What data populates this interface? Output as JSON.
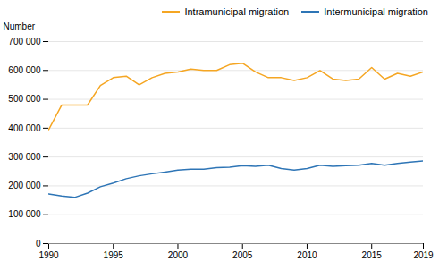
{
  "chart_data": {
    "type": "line",
    "x": [
      1990,
      1991,
      1992,
      1993,
      1994,
      1995,
      1996,
      1997,
      1998,
      1999,
      2000,
      2001,
      2002,
      2003,
      2004,
      2005,
      2006,
      2007,
      2008,
      2009,
      2010,
      2011,
      2012,
      2013,
      2014,
      2015,
      2016,
      2017,
      2018,
      2019
    ],
    "series": [
      {
        "name": "Intramunicipal migration",
        "color": "#F5A623",
        "values": [
          395000,
          480000,
          480000,
          480000,
          548000,
          575000,
          580000,
          550000,
          575000,
          590000,
          595000,
          605000,
          600000,
          600000,
          620000,
          625000,
          595000,
          575000,
          575000,
          565000,
          575000,
          600000,
          570000,
          565000,
          570000,
          610000,
          570000,
          590000,
          580000,
          595000
        ]
      },
      {
        "name": "Intermunicipal migration",
        "color": "#2E75B6",
        "values": [
          172000,
          165000,
          160000,
          175000,
          197000,
          210000,
          225000,
          235000,
          242000,
          248000,
          255000,
          258000,
          258000,
          263000,
          265000,
          270000,
          268000,
          272000,
          260000,
          255000,
          260000,
          272000,
          268000,
          270000,
          272000,
          278000,
          272000,
          278000,
          283000,
          287000
        ]
      }
    ],
    "ylabel": "Number",
    "xlim": [
      1990,
      2019
    ],
    "xticks": [
      1990,
      1995,
      2000,
      2005,
      2010,
      2015,
      2019
    ],
    "ylim": [
      0,
      700000
    ],
    "yticks": [
      0,
      {
        "value": 100000,
        "label": "100 000"
      },
      {
        "value": 200000,
        "label": "200 000"
      },
      {
        "value": 300000,
        "label": "300 000"
      },
      {
        "value": 400000,
        "label": "400 000"
      },
      {
        "value": 500000,
        "label": "500 000"
      },
      {
        "value": 600000,
        "label": "600 000"
      },
      {
        "value": 700000,
        "label": "700 000"
      }
    ],
    "grid": true,
    "legend": "upper right"
  }
}
